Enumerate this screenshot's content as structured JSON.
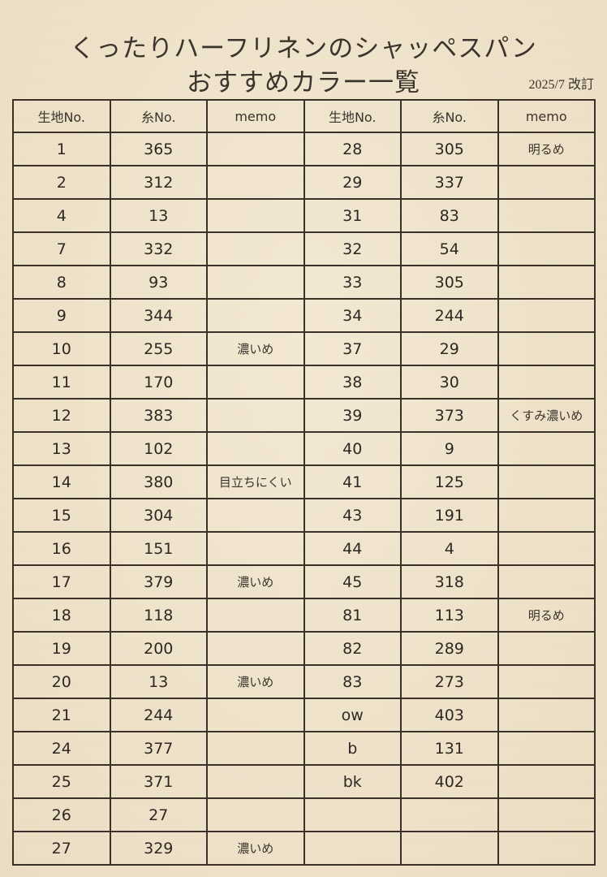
{
  "title_line1": "くったりハーフリネンのシャッペスパン",
  "title_line2": "おすすめカラー一覧",
  "revision": "2025/7 改訂",
  "headers": [
    "生地No.",
    "糸No.",
    "memo",
    "生地No.",
    "糸No.",
    "memo"
  ],
  "rows": [
    [
      "1",
      "365",
      "",
      "28",
      "305",
      "明るめ"
    ],
    [
      "2",
      "312",
      "",
      "29",
      "337",
      ""
    ],
    [
      "4",
      "13",
      "",
      "31",
      "83",
      ""
    ],
    [
      "7",
      "332",
      "",
      "32",
      "54",
      ""
    ],
    [
      "8",
      "93",
      "",
      "33",
      "305",
      ""
    ],
    [
      "9",
      "344",
      "",
      "34",
      "244",
      ""
    ],
    [
      "10",
      "255",
      "濃いめ",
      "37",
      "29",
      ""
    ],
    [
      "11",
      "170",
      "",
      "38",
      "30",
      ""
    ],
    [
      "12",
      "383",
      "",
      "39",
      "373",
      "くすみ濃いめ"
    ],
    [
      "13",
      "102",
      "",
      "40",
      "9",
      ""
    ],
    [
      "14",
      "380",
      "目立ちにくい",
      "41",
      "125",
      ""
    ],
    [
      "15",
      "304",
      "",
      "43",
      "191",
      ""
    ],
    [
      "16",
      "151",
      "",
      "44",
      "4",
      ""
    ],
    [
      "17",
      "379",
      "濃いめ",
      "45",
      "318",
      ""
    ],
    [
      "18",
      "118",
      "",
      "81",
      "113",
      "明るめ"
    ],
    [
      "19",
      "200",
      "",
      "82",
      "289",
      ""
    ],
    [
      "20",
      "13",
      "濃いめ",
      "83",
      "273",
      ""
    ],
    [
      "21",
      "244",
      "",
      "ow",
      "403",
      ""
    ],
    [
      "24",
      "377",
      "",
      "b",
      "131",
      ""
    ],
    [
      "25",
      "371",
      "",
      "bk",
      "402",
      ""
    ],
    [
      "26",
      "27",
      "",
      "",
      "",
      ""
    ],
    [
      "27",
      "329",
      "濃いめ",
      "",
      "",
      ""
    ]
  ]
}
